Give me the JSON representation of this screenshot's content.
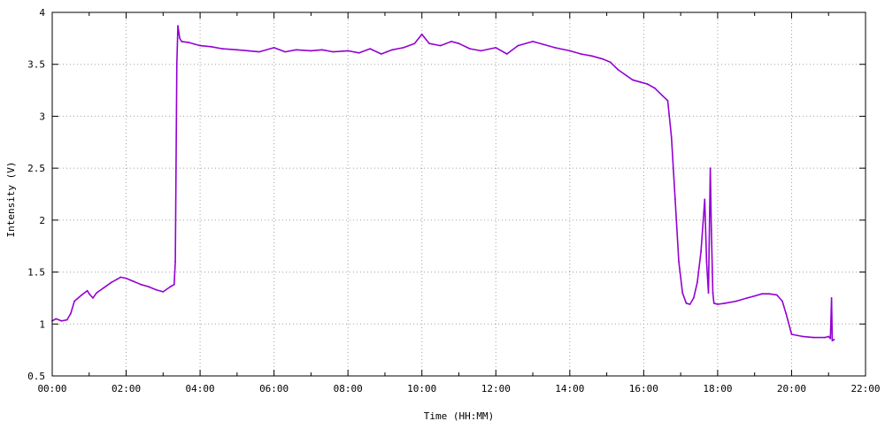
{
  "chart_data": {
    "type": "line",
    "title": "",
    "xlabel": "Time (HH:MM)",
    "ylabel": "Intensity (V)",
    "xlim": [
      0,
      22
    ],
    "ylim": [
      0.5,
      4
    ],
    "x_unit": "hours",
    "x_ticks": [
      0,
      2,
      4,
      6,
      8,
      10,
      12,
      14,
      16,
      18,
      20,
      22
    ],
    "x_tick_labels": [
      "00:00",
      "02:00",
      "04:00",
      "06:00",
      "08:00",
      "10:00",
      "12:00",
      "14:00",
      "16:00",
      "18:00",
      "20:00",
      "22:00"
    ],
    "y_ticks": [
      0.5,
      1,
      1.5,
      2,
      2.5,
      3,
      3.5,
      4
    ],
    "y_tick_labels": [
      "0.5",
      "1",
      "1.5",
      "2",
      "2.5",
      "3",
      "3.5",
      "4"
    ],
    "grid": true,
    "legend": "none",
    "series_color": "#9400d3",
    "series": [
      {
        "x": [
          0.0,
          0.1,
          0.25,
          0.4,
          0.5,
          0.6,
          0.8,
          0.95,
          1.0,
          1.1,
          1.2,
          1.4,
          1.6,
          1.75,
          1.85,
          2.0,
          2.2,
          2.4,
          2.6,
          2.8,
          3.0,
          3.2,
          3.3,
          3.33,
          3.37,
          3.4,
          3.45,
          3.5,
          3.7,
          4.0,
          4.3,
          4.6,
          5.0,
          5.3,
          5.6,
          6.0,
          6.3,
          6.6,
          7.0,
          7.3,
          7.6,
          8.0,
          8.3,
          8.6,
          8.9,
          9.05,
          9.2,
          9.5,
          9.8,
          10.0,
          10.2,
          10.5,
          10.8,
          11.0,
          11.3,
          11.6,
          12.0,
          12.3,
          12.6,
          13.0,
          13.3,
          13.6,
          14.0,
          14.3,
          14.6,
          14.9,
          15.1,
          15.3,
          15.5,
          15.7,
          15.9,
          16.1,
          16.3,
          16.5,
          16.65,
          16.75,
          16.85,
          16.95,
          17.05,
          17.15,
          17.25,
          17.35,
          17.45,
          17.55,
          17.65,
          17.7,
          17.75,
          17.8,
          17.83,
          17.87,
          17.9,
          18.0,
          18.2,
          18.5,
          18.8,
          19.0,
          19.2,
          19.4,
          19.6,
          19.75,
          19.85,
          20.0,
          20.3,
          20.6,
          20.9,
          21.0,
          21.05,
          21.08,
          21.1,
          21.15
        ],
        "y": [
          1.03,
          1.05,
          1.03,
          1.04,
          1.1,
          1.22,
          1.28,
          1.32,
          1.29,
          1.25,
          1.3,
          1.35,
          1.4,
          1.43,
          1.45,
          1.44,
          1.41,
          1.38,
          1.36,
          1.33,
          1.31,
          1.36,
          1.38,
          1.6,
          3.5,
          3.87,
          3.75,
          3.72,
          3.71,
          3.68,
          3.67,
          3.65,
          3.64,
          3.63,
          3.62,
          3.66,
          3.62,
          3.64,
          3.63,
          3.64,
          3.62,
          3.63,
          3.61,
          3.65,
          3.6,
          3.62,
          3.64,
          3.66,
          3.7,
          3.79,
          3.7,
          3.68,
          3.72,
          3.7,
          3.65,
          3.63,
          3.66,
          3.6,
          3.68,
          3.72,
          3.69,
          3.66,
          3.63,
          3.6,
          3.58,
          3.55,
          3.52,
          3.45,
          3.4,
          3.35,
          3.33,
          3.31,
          3.27,
          3.2,
          3.15,
          2.8,
          2.2,
          1.6,
          1.3,
          1.2,
          1.19,
          1.25,
          1.4,
          1.7,
          2.2,
          1.6,
          1.3,
          2.5,
          1.9,
          1.3,
          1.2,
          1.19,
          1.2,
          1.22,
          1.25,
          1.27,
          1.29,
          1.29,
          1.28,
          1.22,
          1.1,
          0.9,
          0.88,
          0.87,
          0.87,
          0.88,
          0.86,
          1.25,
          0.84,
          0.85
        ]
      }
    ]
  }
}
